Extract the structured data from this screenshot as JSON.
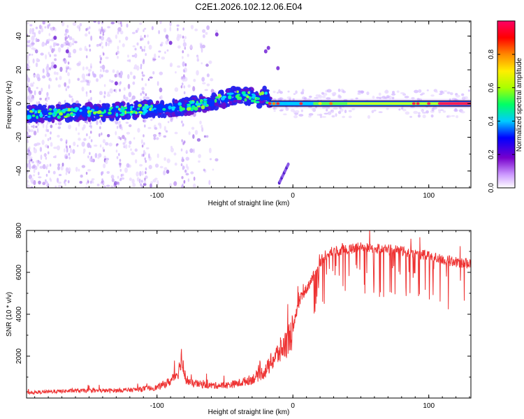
{
  "title": "C2E1.2026.102.12.06.E04",
  "chart_data": [
    {
      "type": "heatmap",
      "name": "spectrogram",
      "xlabel": "Height of straight line (km)",
      "ylabel": "Frequency (Hz)",
      "xlim": [
        -196,
        131
      ],
      "ylim": [
        -50,
        49
      ],
      "xticks": [
        -100,
        0,
        100
      ],
      "xtick_labels": [
        "-100",
        "0",
        "100"
      ],
      "yticks": [
        40,
        20,
        0,
        -20,
        -40
      ],
      "ytick_labels": [
        "40",
        "20",
        "0",
        "-20",
        "-40"
      ],
      "ridge_x": [
        -196,
        -180,
        -160,
        -140,
        -120,
        -100,
        -80,
        -60,
        -50,
        -40,
        -30,
        -25,
        -20,
        -17,
        -10,
        0,
        20,
        50,
        80,
        100,
        131
      ],
      "ridge_y": [
        -6,
        -6,
        -5,
        -5,
        -4,
        -3,
        -2,
        1,
        3,
        5,
        4,
        3,
        5,
        0,
        0,
        0,
        0,
        0,
        0,
        0,
        0
      ],
      "colorbar": {
        "label": "Normalized spectral amplitude",
        "ticks": [
          0.0,
          0.2,
          0.4,
          0.6,
          0.8
        ],
        "tick_labels": [
          "0.0",
          "0.2",
          "0.4",
          "0.6",
          "0.8"
        ],
        "range": [
          0,
          1
        ],
        "colors": [
          "#ffffff",
          "#cc99ff",
          "#7700cc",
          "#0000ff",
          "#00ccff",
          "#00ff66",
          "#aaff00",
          "#ffee00",
          "#ff8800",
          "#ff0000",
          "#ff0066"
        ]
      }
    },
    {
      "type": "line",
      "name": "snr",
      "xlabel": "Height of straight line (km)",
      "ylabel": "SNR (10 * v/v)",
      "xlim": [
        -196,
        131
      ],
      "ylim": [
        0,
        8000
      ],
      "xticks": [
        -100,
        0,
        100
      ],
      "xtick_labels": [
        "-100",
        "0",
        "100"
      ],
      "yticks": [
        2000,
        4000,
        6000,
        8000
      ],
      "ytick_labels": [
        "2000",
        "4000",
        "6000",
        "8000"
      ],
      "line_color": "#ee3333",
      "series": [
        {
          "name": "SNR",
          "x": [
            -196,
            -180,
            -160,
            -140,
            -120,
            -100,
            -90,
            -84,
            -82,
            -80,
            -75,
            -60,
            -50,
            -40,
            -30,
            -20,
            -15,
            -10,
            -5,
            0,
            3,
            6,
            10,
            15,
            20,
            25,
            30,
            40,
            50,
            60,
            70,
            80,
            90,
            100,
            110,
            120,
            131
          ],
          "y": [
            250,
            300,
            350,
            350,
            380,
            500,
            800,
            1300,
            2000,
            1000,
            700,
            600,
            600,
            700,
            900,
            1300,
            1800,
            2200,
            2600,
            3200,
            4200,
            4800,
            5200,
            5800,
            6500,
            6900,
            7000,
            7100,
            7200,
            7150,
            7100,
            7000,
            6900,
            6800,
            6600,
            6500,
            6400
          ]
        }
      ]
    }
  ]
}
